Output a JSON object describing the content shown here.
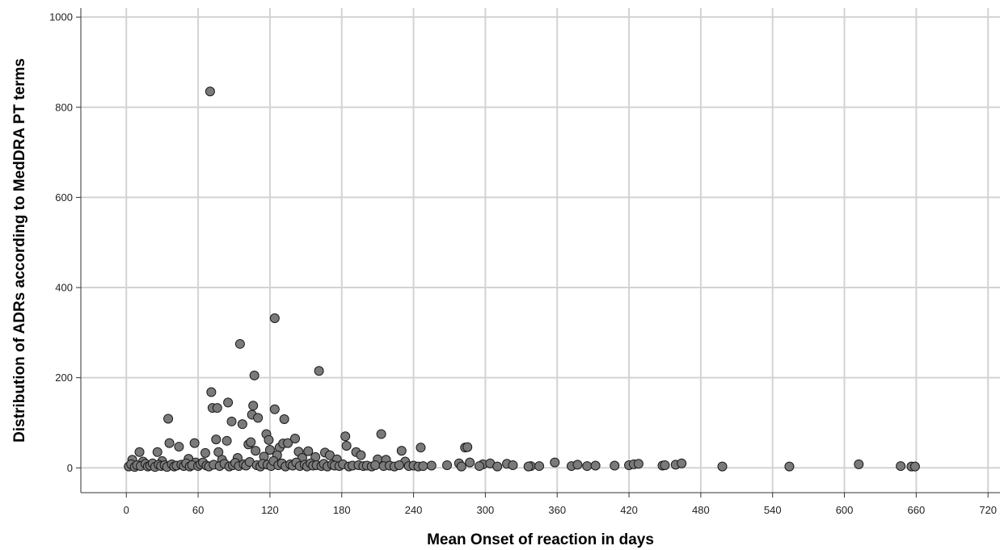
{
  "chart_data": {
    "type": "scatter",
    "title": "",
    "xlabel": "Mean Onset of reaction in days",
    "ylabel": "Distribution of ADRs according to MedDRA PT terms",
    "xlim": [
      -38,
      730
    ],
    "ylim": [
      -55,
      1020
    ],
    "x_ticks": [
      0,
      60,
      120,
      180,
      240,
      300,
      360,
      420,
      480,
      540,
      600,
      660,
      720
    ],
    "x_tick_labels": [
      "0",
      "60",
      "120",
      "180",
      "240",
      "300",
      "360",
      "420",
      "480",
      "540",
      "600",
      "660",
      "720"
    ],
    "y_ticks": [
      0,
      200,
      400,
      600,
      800,
      1000
    ],
    "y_tick_labels": [
      "0",
      "200",
      "400",
      "600",
      "800",
      "1000"
    ],
    "grid": true,
    "colors": {
      "marker_fill": "#7a7a7a",
      "marker_stroke": "#1a1a1a",
      "grid": "#d3d3d3",
      "axis": "#333333"
    },
    "points": [
      [
        70,
        835
      ],
      [
        124,
        332
      ],
      [
        95,
        275
      ],
      [
        107,
        205
      ],
      [
        161,
        215
      ],
      [
        71,
        168
      ],
      [
        72,
        133
      ],
      [
        76,
        133
      ],
      [
        85,
        145
      ],
      [
        106,
        138
      ],
      [
        124,
        130
      ],
      [
        35,
        109
      ],
      [
        88,
        103
      ],
      [
        97,
        97
      ],
      [
        105,
        118
      ],
      [
        110,
        111
      ],
      [
        132,
        108
      ],
      [
        36,
        55
      ],
      [
        44,
        47
      ],
      [
        57,
        55
      ],
      [
        75,
        63
      ],
      [
        84,
        60
      ],
      [
        102,
        52
      ],
      [
        104,
        57
      ],
      [
        117,
        75
      ],
      [
        119,
        62
      ],
      [
        128,
        45
      ],
      [
        131,
        54
      ],
      [
        135,
        55
      ],
      [
        141,
        65
      ],
      [
        183,
        70
      ],
      [
        184,
        49
      ],
      [
        192,
        35
      ],
      [
        213,
        75
      ],
      [
        230,
        38
      ],
      [
        246,
        45
      ],
      [
        283,
        45
      ],
      [
        285,
        46
      ],
      [
        11,
        35
      ],
      [
        26,
        35
      ],
      [
        66,
        33
      ],
      [
        77,
        35
      ],
      [
        108,
        38
      ],
      [
        120,
        40
      ],
      [
        144,
        36
      ],
      [
        152,
        37
      ],
      [
        166,
        34
      ],
      [
        170,
        28
      ],
      [
        196,
        28
      ],
      [
        5,
        18
      ],
      [
        14,
        14
      ],
      [
        30,
        15
      ],
      [
        52,
        20
      ],
      [
        58,
        12
      ],
      [
        80,
        18
      ],
      [
        93,
        22
      ],
      [
        115,
        25
      ],
      [
        126,
        28
      ],
      [
        147,
        22
      ],
      [
        158,
        24
      ],
      [
        176,
        19
      ],
      [
        210,
        19
      ],
      [
        217,
        18
      ],
      [
        233,
        14
      ],
      [
        255,
        5
      ],
      [
        268,
        6
      ],
      [
        278,
        10
      ],
      [
        287,
        12
      ],
      [
        298,
        8
      ],
      [
        304,
        10
      ],
      [
        318,
        9
      ],
      [
        323,
        6
      ],
      [
        338,
        4
      ],
      [
        345,
        4
      ],
      [
        358,
        12
      ],
      [
        372,
        4
      ],
      [
        377,
        7
      ],
      [
        385,
        4
      ],
      [
        392,
        5
      ],
      [
        408,
        5
      ],
      [
        420,
        6
      ],
      [
        424,
        8
      ],
      [
        428,
        9
      ],
      [
        448,
        5
      ],
      [
        450,
        6
      ],
      [
        459,
        7
      ],
      [
        464,
        10
      ],
      [
        498,
        3
      ],
      [
        554,
        3
      ],
      [
        612,
        8
      ],
      [
        647,
        4
      ],
      [
        656,
        3
      ],
      [
        659,
        3
      ],
      [
        2,
        3
      ],
      [
        4,
        8
      ],
      [
        7,
        2
      ],
      [
        9,
        6
      ],
      [
        12,
        4
      ],
      [
        16,
        9
      ],
      [
        18,
        3
      ],
      [
        20,
        5
      ],
      [
        22,
        10
      ],
      [
        24,
        2
      ],
      [
        27,
        7
      ],
      [
        29,
        4
      ],
      [
        32,
        6
      ],
      [
        34,
        2
      ],
      [
        38,
        8
      ],
      [
        40,
        3
      ],
      [
        42,
        5
      ],
      [
        46,
        7
      ],
      [
        48,
        4
      ],
      [
        50,
        10
      ],
      [
        53,
        3
      ],
      [
        55,
        6
      ],
      [
        60,
        4
      ],
      [
        62,
        8
      ],
      [
        64,
        12
      ],
      [
        67,
        5
      ],
      [
        69,
        3
      ],
      [
        73,
        7
      ],
      [
        78,
        4
      ],
      [
        82,
        9
      ],
      [
        86,
        3
      ],
      [
        89,
        6
      ],
      [
        91,
        11
      ],
      [
        94,
        4
      ],
      [
        98,
        8
      ],
      [
        100,
        5
      ],
      [
        103,
        13
      ],
      [
        109,
        6
      ],
      [
        112,
        3
      ],
      [
        114,
        9
      ],
      [
        118,
        7
      ],
      [
        121,
        4
      ],
      [
        123,
        15
      ],
      [
        127,
        6
      ],
      [
        130,
        10
      ],
      [
        133,
        3
      ],
      [
        137,
        8
      ],
      [
        139,
        5
      ],
      [
        142,
        12
      ],
      [
        145,
        4
      ],
      [
        149,
        7
      ],
      [
        151,
        3
      ],
      [
        154,
        10
      ],
      [
        156,
        5
      ],
      [
        159,
        6
      ],
      [
        163,
        4
      ],
      [
        165,
        9
      ],
      [
        168,
        3
      ],
      [
        172,
        7
      ],
      [
        174,
        5
      ],
      [
        178,
        4
      ],
      [
        181,
        8
      ],
      [
        186,
        3
      ],
      [
        189,
        5
      ],
      [
        194,
        6
      ],
      [
        198,
        4
      ],
      [
        201,
        5
      ],
      [
        205,
        3
      ],
      [
        208,
        6
      ],
      [
        215,
        4
      ],
      [
        220,
        5
      ],
      [
        224,
        3
      ],
      [
        228,
        6
      ],
      [
        236,
        4
      ],
      [
        240,
        5
      ],
      [
        244,
        3
      ],
      [
        248,
        4
      ],
      [
        280,
        3
      ],
      [
        295,
        4
      ],
      [
        310,
        3
      ],
      [
        336,
        3
      ]
    ]
  }
}
